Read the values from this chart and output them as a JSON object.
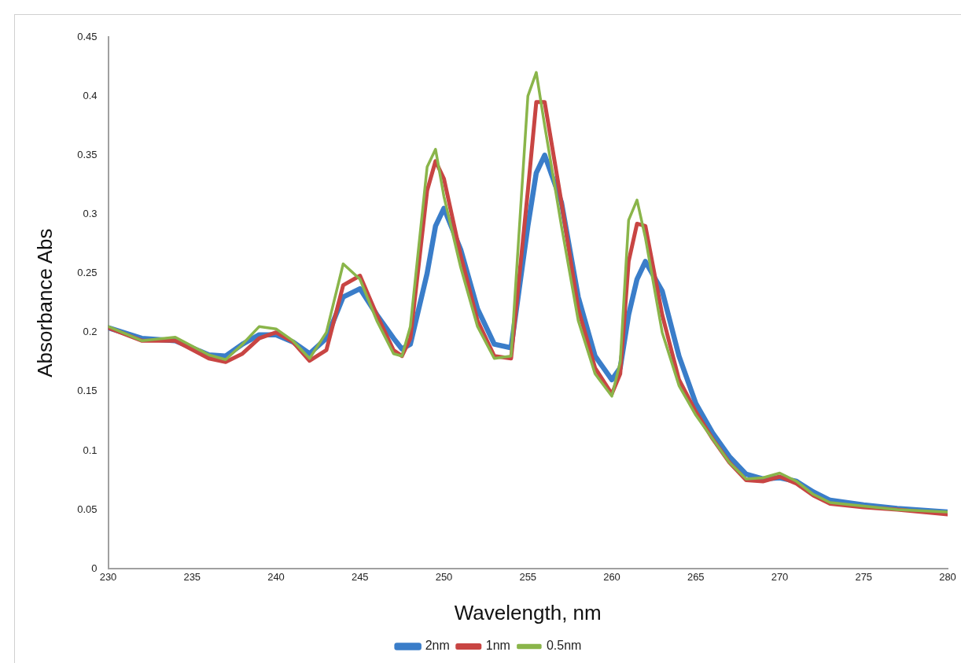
{
  "chart_data": {
    "type": "line",
    "xlabel": "Wavelength, nm",
    "ylabel": "Absorbance Abs",
    "x": [
      230,
      232,
      234,
      236,
      237,
      238,
      239,
      240,
      241,
      242,
      243,
      244,
      245,
      246,
      247,
      247.5,
      248,
      249,
      249.5,
      250,
      251,
      252,
      253,
      254,
      255,
      255.5,
      256,
      257,
      258,
      259,
      260,
      260.5,
      261,
      261.5,
      262,
      263,
      264,
      265,
      266,
      267,
      268,
      269,
      270,
      271,
      272,
      273,
      275,
      277,
      280
    ],
    "xlim": [
      230,
      280
    ],
    "xticks": [
      230,
      235,
      240,
      245,
      250,
      255,
      260,
      265,
      270,
      275,
      280
    ],
    "ylim": [
      0,
      0.45
    ],
    "yticks": [
      0,
      0.05,
      0.1,
      0.15,
      0.2,
      0.25,
      0.3,
      0.35,
      0.4,
      0.45
    ],
    "grid": false,
    "legend": "bottom",
    "marker": "none",
    "line_style": "solid",
    "series": [
      {
        "name": "2nm",
        "color": "#3a7dc9",
        "values": [
          0.204,
          0.195,
          0.193,
          0.181,
          0.18,
          0.19,
          0.198,
          0.198,
          0.192,
          0.182,
          0.195,
          0.23,
          0.237,
          0.215,
          0.195,
          0.186,
          0.19,
          0.25,
          0.29,
          0.305,
          0.27,
          0.22,
          0.19,
          0.187,
          0.29,
          0.335,
          0.35,
          0.31,
          0.23,
          0.18,
          0.16,
          0.17,
          0.215,
          0.245,
          0.26,
          0.235,
          0.18,
          0.14,
          0.115,
          0.095,
          0.08,
          0.076,
          0.077,
          0.074,
          0.065,
          0.058,
          0.054,
          0.051,
          0.048
        ]
      },
      {
        "name": "1nm",
        "color": "#c84543",
        "values": [
          0.204,
          0.193,
          0.193,
          0.178,
          0.175,
          0.182,
          0.195,
          0.2,
          0.192,
          0.176,
          0.185,
          0.24,
          0.248,
          0.215,
          0.185,
          0.18,
          0.195,
          0.32,
          0.345,
          0.33,
          0.265,
          0.21,
          0.18,
          0.178,
          0.32,
          0.395,
          0.395,
          0.31,
          0.22,
          0.17,
          0.148,
          0.165,
          0.26,
          0.292,
          0.29,
          0.215,
          0.16,
          0.133,
          0.11,
          0.09,
          0.075,
          0.074,
          0.078,
          0.072,
          0.062,
          0.055,
          0.052,
          0.05,
          0.046
        ]
      },
      {
        "name": "0.5nm",
        "color": "#8ab54a",
        "values": [
          0.205,
          0.193,
          0.196,
          0.181,
          0.177,
          0.19,
          0.205,
          0.203,
          0.193,
          0.178,
          0.2,
          0.258,
          0.245,
          0.21,
          0.182,
          0.18,
          0.205,
          0.34,
          0.355,
          0.315,
          0.255,
          0.205,
          0.178,
          0.18,
          0.4,
          0.42,
          0.375,
          0.29,
          0.21,
          0.165,
          0.146,
          0.175,
          0.295,
          0.312,
          0.28,
          0.2,
          0.155,
          0.13,
          0.11,
          0.09,
          0.076,
          0.077,
          0.081,
          0.074,
          0.063,
          0.056,
          0.053,
          0.05,
          0.048
        ]
      }
    ]
  }
}
